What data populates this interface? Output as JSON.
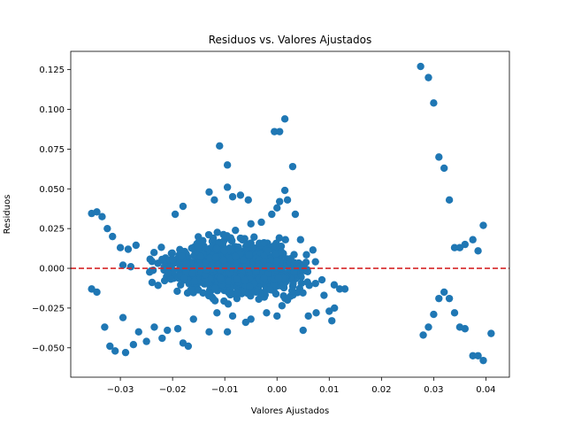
{
  "chart_data": {
    "type": "scatter",
    "title": "Residuos vs. Valores Ajustados",
    "xlabel": "Valores Ajustados",
    "ylabel": "Residuos",
    "xlim": [
      -0.0395,
      0.0445
    ],
    "ylim": [
      -0.0685,
      0.1365
    ],
    "xticks": [
      -0.03,
      -0.02,
      -0.01,
      0.0,
      0.01,
      0.02,
      0.03,
      0.04
    ],
    "xtick_labels": [
      "−0.03",
      "−0.02",
      "−0.01",
      "0.00",
      "0.01",
      "0.02",
      "0.03",
      "0.04"
    ],
    "yticks": [
      -0.05,
      -0.025,
      0.0,
      0.025,
      0.05,
      0.075,
      0.1,
      0.125
    ],
    "ytick_labels": [
      "−0.050",
      "−0.025",
      "0.000",
      "0.025",
      "0.050",
      "0.075",
      "0.100",
      "0.125"
    ],
    "grid": false,
    "marker_color": "#1f77b4",
    "reference_line": {
      "y": 0.0,
      "color": "#d62728",
      "style": "dashed"
    },
    "cluster": {
      "note": "dense cloud of residual points",
      "center_x": -0.008,
      "center_y": 0.0,
      "x_range": [
        -0.033,
        0.013
      ],
      "y_range": [
        -0.048,
        0.04
      ]
    },
    "points": [
      [
        -0.0355,
        0.0345
      ],
      [
        -0.0345,
        0.0355
      ],
      [
        -0.0335,
        0.0325
      ],
      [
        -0.0325,
        0.025
      ],
      [
        -0.0315,
        0.02
      ],
      [
        -0.0355,
        -0.013
      ],
      [
        -0.0345,
        -0.015
      ],
      [
        -0.033,
        -0.037
      ],
      [
        -0.032,
        -0.049
      ],
      [
        -0.031,
        -0.052
      ],
      [
        -0.029,
        -0.053
      ],
      [
        -0.0275,
        -0.048
      ],
      [
        -0.0265,
        -0.04
      ],
      [
        -0.025,
        -0.046
      ],
      [
        -0.0295,
        -0.031
      ],
      [
        -0.03,
        0.013
      ],
      [
        -0.0285,
        0.012
      ],
      [
        -0.027,
        0.0145
      ],
      [
        -0.0295,
        0.002
      ],
      [
        -0.028,
        0.001
      ],
      [
        -0.0235,
        -0.037
      ],
      [
        -0.022,
        -0.044
      ],
      [
        -0.021,
        -0.039
      ],
      [
        -0.019,
        -0.038
      ],
      [
        -0.018,
        -0.047
      ],
      [
        -0.017,
        -0.049
      ],
      [
        -0.016,
        -0.032
      ],
      [
        -0.013,
        -0.04
      ],
      [
        -0.0115,
        -0.028
      ],
      [
        -0.0095,
        -0.04
      ],
      [
        -0.0085,
        -0.03
      ],
      [
        -0.006,
        -0.034
      ],
      [
        -0.005,
        -0.032
      ],
      [
        -0.002,
        -0.028
      ],
      [
        0.0,
        -0.03
      ],
      [
        0.002,
        -0.02
      ],
      [
        0.005,
        -0.039
      ],
      [
        0.006,
        -0.03
      ],
      [
        0.0075,
        -0.028
      ],
      [
        0.01,
        -0.027
      ],
      [
        0.0105,
        -0.033
      ],
      [
        0.011,
        -0.025
      ],
      [
        0.012,
        -0.013
      ],
      [
        0.013,
        -0.013
      ],
      [
        0.009,
        -0.017
      ],
      [
        -0.018,
        0.039
      ],
      [
        -0.0195,
        0.034
      ],
      [
        -0.013,
        0.048
      ],
      [
        -0.012,
        0.043
      ],
      [
        -0.011,
        0.077
      ],
      [
        -0.0095,
        0.065
      ],
      [
        -0.0095,
        0.051
      ],
      [
        -0.0085,
        0.045
      ],
      [
        -0.007,
        0.046
      ],
      [
        -0.0055,
        0.043
      ],
      [
        -0.005,
        0.028
      ],
      [
        -0.003,
        0.029
      ],
      [
        -0.001,
        0.034
      ],
      [
        0.0,
        0.038
      ],
      [
        0.0005,
        0.042
      ],
      [
        0.0015,
        0.049
      ],
      [
        0.002,
        0.043
      ],
      [
        0.0035,
        0.034
      ],
      [
        0.0045,
        0.018
      ],
      [
        0.003,
        0.064
      ],
      [
        -0.0005,
        0.086
      ],
      [
        0.0005,
        0.086
      ],
      [
        0.0015,
        0.094
      ],
      [
        0.0275,
        0.127
      ],
      [
        0.029,
        0.12
      ],
      [
        0.03,
        0.104
      ],
      [
        0.031,
        0.07
      ],
      [
        0.032,
        0.063
      ],
      [
        0.033,
        0.043
      ],
      [
        0.034,
        0.013
      ],
      [
        0.035,
        0.013
      ],
      [
        0.036,
        0.015
      ],
      [
        0.0375,
        0.018
      ],
      [
        0.0385,
        0.011
      ],
      [
        0.0395,
        0.027
      ],
      [
        0.028,
        -0.042
      ],
      [
        0.029,
        -0.037
      ],
      [
        0.03,
        -0.029
      ],
      [
        0.031,
        -0.019
      ],
      [
        0.032,
        -0.015
      ],
      [
        0.033,
        -0.019
      ],
      [
        0.034,
        -0.028
      ],
      [
        0.035,
        -0.037
      ],
      [
        0.036,
        -0.038
      ],
      [
        0.0375,
        -0.055
      ],
      [
        0.0385,
        -0.055
      ],
      [
        0.0395,
        -0.058
      ],
      [
        0.041,
        -0.041
      ]
    ]
  }
}
